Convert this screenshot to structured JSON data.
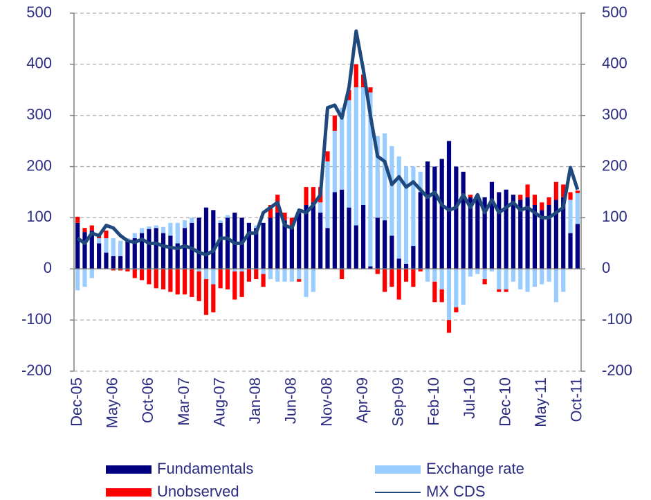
{
  "chart_data": {
    "type": "bar",
    "stacked": true,
    "categories": [
      "Dec-05",
      null,
      null,
      null,
      null,
      "May-06",
      null,
      null,
      null,
      null,
      "Oct-06",
      null,
      null,
      null,
      null,
      "Mar-07",
      null,
      null,
      null,
      null,
      "Aug-07",
      null,
      null,
      null,
      null,
      "Jan-08",
      null,
      null,
      null,
      null,
      "Jun-08",
      null,
      null,
      null,
      null,
      "Nov-08",
      null,
      null,
      null,
      null,
      "Apr-09",
      null,
      null,
      null,
      null,
      "Sep-09",
      null,
      null,
      null,
      null,
      "Feb-10",
      null,
      null,
      null,
      null,
      "Jul-10",
      null,
      null,
      null,
      null,
      "Dec-10",
      null,
      null,
      null,
      null,
      "May-11",
      null,
      null,
      null,
      null,
      "Oct-11"
    ],
    "series": [
      {
        "name": "Fundamentals",
        "color": "#000080",
        "values": [
          90,
          72,
          75,
          50,
          32,
          25,
          25,
          55,
          60,
          70,
          78,
          80,
          70,
          65,
          50,
          80,
          90,
          100,
          120,
          115,
          90,
          100,
          110,
          100,
          90,
          80,
          90,
          100,
          110,
          95,
          80,
          110,
          125,
          130,
          110,
          80,
          150,
          155,
          120,
          85,
          125,
          5,
          100,
          95,
          65,
          20,
          10,
          45,
          150,
          210,
          200,
          215,
          250,
          200,
          190,
          140,
          140,
          140,
          170,
          150,
          155,
          145,
          135,
          140,
          125,
          115,
          125,
          135,
          140,
          70,
          88
        ]
      },
      {
        "name": "Exchange rate",
        "color": "#99ccff",
        "values": [
          -42,
          -35,
          -18,
          10,
          28,
          35,
          30,
          5,
          10,
          10,
          5,
          5,
          12,
          25,
          40,
          15,
          10,
          -5,
          -20,
          -30,
          5,
          5,
          -5,
          -5,
          0,
          5,
          -10,
          -20,
          -25,
          -25,
          -25,
          -20,
          -55,
          -45,
          20,
          130,
          120,
          160,
          210,
          270,
          230,
          340,
          160,
          170,
          175,
          200,
          190,
          155,
          40,
          -25,
          -25,
          -40,
          -100,
          -75,
          -70,
          -15,
          -10,
          -20,
          -5,
          -40,
          -40,
          -25,
          -40,
          -45,
          -35,
          -30,
          -25,
          -65,
          -45,
          65,
          60
        ]
      },
      {
        "name": "Unobserved",
        "color": "#ff0000",
        "values": [
          12,
          8,
          10,
          5,
          15,
          -3,
          -3,
          -5,
          -18,
          -22,
          -30,
          -38,
          -40,
          -45,
          -50,
          -50,
          -55,
          -58,
          -70,
          -55,
          -38,
          -40,
          -55,
          -50,
          -25,
          -20,
          -25,
          25,
          35,
          15,
          20,
          -5,
          35,
          30,
          30,
          20,
          30,
          -20,
          20,
          45,
          25,
          10,
          -10,
          -45,
          -35,
          -60,
          -25,
          -35,
          -5,
          0,
          -40,
          -25,
          -25,
          -10,
          0,
          5,
          5,
          -10,
          0,
          -5,
          -5,
          0,
          10,
          25,
          20,
          15,
          15,
          35,
          25,
          15,
          5
        ]
      },
      {
        "name": "MX CDS",
        "type": "line",
        "color": "#1f497d",
        "values": [
          60,
          50,
          70,
          65,
          85,
          80,
          65,
          55,
          52,
          58,
          50,
          50,
          45,
          42,
          40,
          45,
          40,
          32,
          28,
          35,
          60,
          60,
          50,
          50,
          70,
          70,
          110,
          120,
          130,
          85,
          80,
          115,
          110,
          125,
          145,
          315,
          320,
          295,
          355,
          465,
          390,
          300,
          220,
          210,
          165,
          180,
          160,
          170,
          155,
          140,
          150,
          125,
          115,
          120,
          145,
          120,
          145,
          110,
          135,
          110,
          120,
          130,
          115,
          120,
          110,
          100,
          100,
          110,
          120,
          198,
          155
        ]
      }
    ],
    "ylim": [
      -200,
      500
    ],
    "yticks": [
      -200,
      -100,
      0,
      100,
      200,
      300,
      400,
      500
    ],
    "y2lim": [
      -200,
      500
    ],
    "y2ticks": [
      -200,
      -100,
      0,
      100,
      200,
      300,
      400,
      500
    ],
    "grid": true,
    "legend": "bottom"
  }
}
